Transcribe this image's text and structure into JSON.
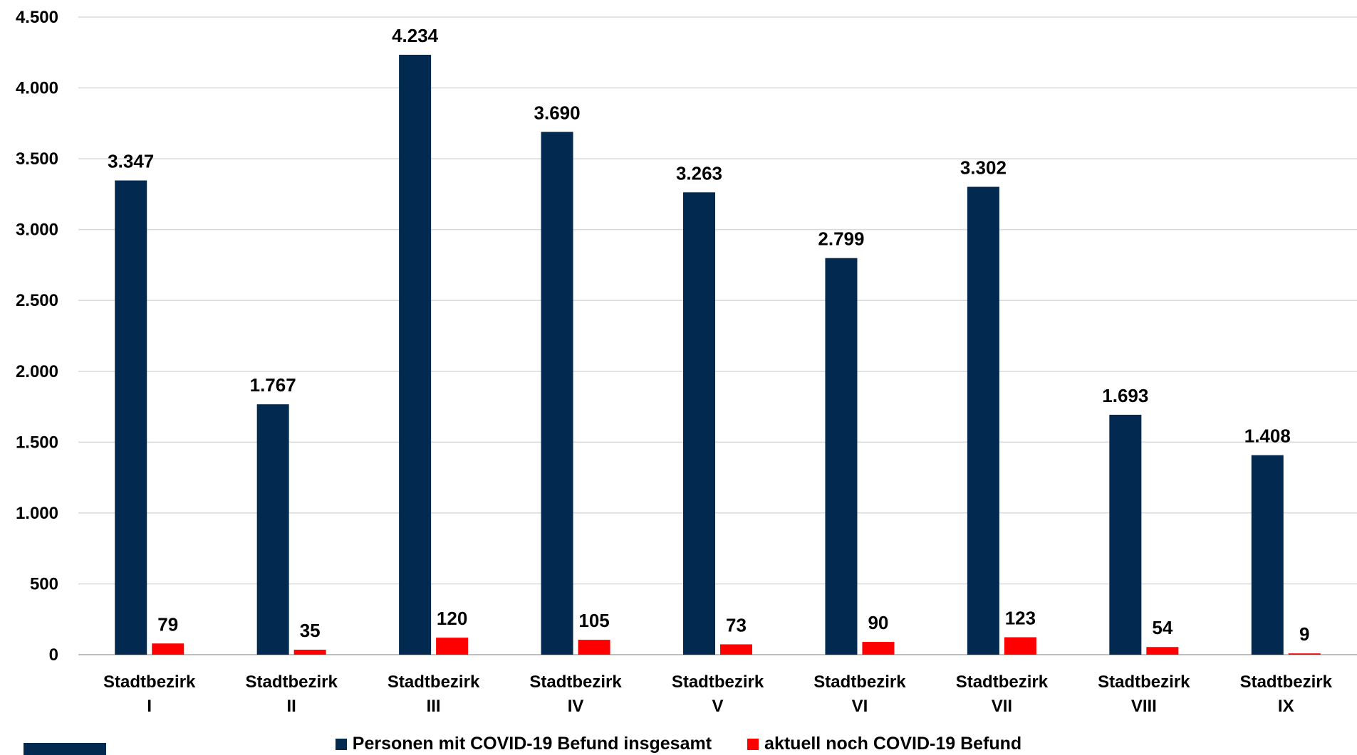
{
  "chart_data": {
    "type": "bar",
    "categories": [
      [
        "Stadtbezirk",
        "I"
      ],
      [
        "Stadtbezirk",
        "II"
      ],
      [
        "Stadtbezirk",
        "III"
      ],
      [
        "Stadtbezirk",
        "IV"
      ],
      [
        "Stadtbezirk",
        "V"
      ],
      [
        "Stadtbezirk",
        "VI"
      ],
      [
        "Stadtbezirk",
        "VII"
      ],
      [
        "Stadtbezirk",
        "VIII"
      ],
      [
        "Stadtbezirk",
        "IX"
      ]
    ],
    "series": [
      {
        "name": "Personen mit COVID-19 Befund insgesamt",
        "color": "#02294f",
        "values": [
          3347,
          1767,
          4234,
          3690,
          3263,
          2799,
          3302,
          1693,
          1408
        ],
        "labels": [
          "3.347",
          "1.767",
          "4.234",
          "3.690",
          "3.263",
          "2.799",
          "3.302",
          "1.693",
          "1.408"
        ]
      },
      {
        "name": "aktuell noch COVID-19 Befund",
        "color": "#ff0000",
        "values": [
          79,
          35,
          120,
          105,
          73,
          90,
          123,
          54,
          9
        ],
        "labels": [
          "79",
          "35",
          "120",
          "105",
          "73",
          "90",
          "123",
          "54",
          "9"
        ]
      }
    ],
    "ylim": [
      0,
      4500
    ],
    "yticks": [
      0,
      500,
      1000,
      1500,
      2000,
      2500,
      3000,
      3500,
      4000,
      4500
    ],
    "ytick_labels": [
      "0",
      "500",
      "1.000",
      "1.500",
      "2.000",
      "2.500",
      "3.000",
      "3.500",
      "4.000",
      "4.500"
    ],
    "grid": true,
    "legend_position": "bottom"
  }
}
